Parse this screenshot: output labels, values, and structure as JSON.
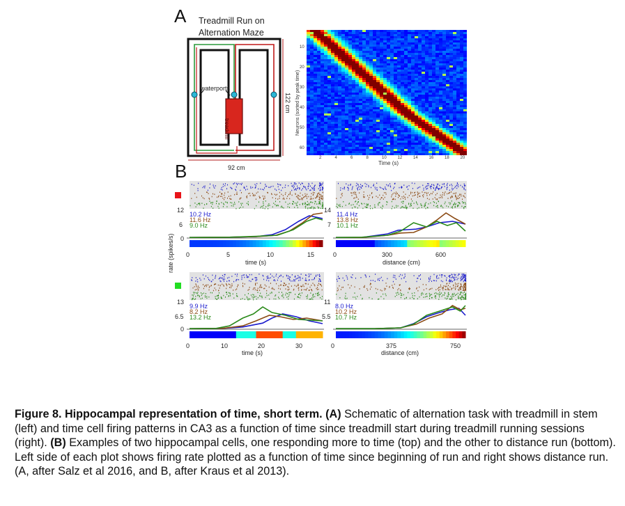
{
  "panel_a": {
    "letter": "A",
    "maze_title_line1": "Treadmill Run on",
    "maze_title_line2": "Alternation Maze",
    "waterports_label": "waterports",
    "treadmill_label": "treadmill",
    "height_label": "122 cm",
    "width_label": "92 cm",
    "heatmap_ylabel": "Neurons (sorted by peak time)",
    "heatmap_xlabel": "Time (s)",
    "heatmap_yticks": [
      "10",
      "20",
      "30",
      "40",
      "50",
      "60"
    ],
    "heatmap_xticks": [
      "2",
      "4",
      "6",
      "8",
      "10",
      "12",
      "14",
      "16",
      "18",
      "20"
    ]
  },
  "panel_b": {
    "letter": "B",
    "ylabel": "rate (spikes/s)",
    "top_time": {
      "ymax": "12",
      "ymid": "6",
      "ymin": "0",
      "rates": [
        "10.2 Hz",
        "11.6 Hz",
        "9.0 Hz"
      ],
      "xticks": [
        "0",
        "5",
        "10",
        "15"
      ],
      "xlabel": "time (s)"
    },
    "top_distance": {
      "ymax": "14",
      "ymid": "7",
      "ymin": "",
      "rates": [
        "11.4 Hz",
        "13.8 Hz",
        "10.1 Hz"
      ],
      "xticks": [
        "0",
        "300",
        "600"
      ],
      "xlabel": "distance (cm)"
    },
    "bottom_time": {
      "ymax": "13",
      "ymid": "6.5",
      "ymin": "0",
      "rates": [
        "9.9 Hz",
        "8.2 Hz",
        "13.2 Hz"
      ],
      "xticks": [
        "0",
        "10",
        "20",
        "30"
      ],
      "xlabel": "time (s)"
    },
    "bottom_distance": {
      "ymax": "11",
      "ymid": "5.5",
      "ymin": "",
      "rates": [
        "8.0 Hz",
        "10.2 Hz",
        "10.7 Hz"
      ],
      "xticks": [
        "0",
        "375",
        "750"
      ],
      "xlabel": "distance (cm)"
    }
  },
  "colors": {
    "series_blue": "#1a1acc",
    "series_brown": "#8b4a14",
    "series_green": "#2a8a1a",
    "marker_top": "#e8141a",
    "marker_bottom": "#22dd22"
  },
  "caption": {
    "title": "Figure 8. Hippocampal representation of time, short term.",
    "a_tag": "(A)",
    "a_text": " Schematic of alternation task with treadmill in stem (left) and time cell firing patterns in CA3 as a function of time since treadmill start during treadmill running sessions (right).  ",
    "b_tag": "(B)",
    "b_text": " Examples of two hippocampal cells, one responding more to time (top) and the other to distance run (bottom). Left side of each plot shows firing rate plotted as a function of time since beginning of run and right shows distance run.  (A, after Salz et al 2016, and B, after Kraus et al 2013)."
  }
}
